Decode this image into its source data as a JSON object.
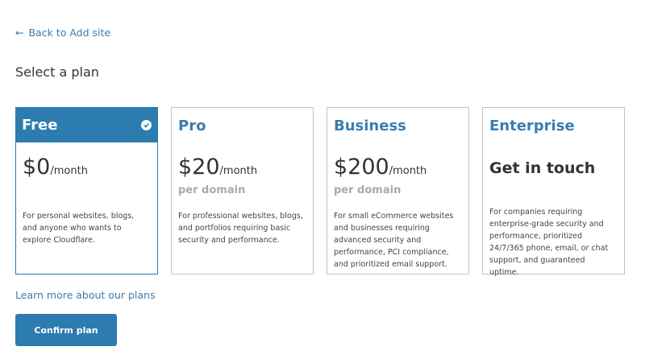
{
  "nav": {
    "back_label": "Back to Add site"
  },
  "page_title": "Select a plan",
  "plans": [
    {
      "name": "Free",
      "price": "$0",
      "period": "/month",
      "sub": "",
      "description": "For personal websites, blogs, and anyone who wants to explore Cloudflare.",
      "selected": true
    },
    {
      "name": "Pro",
      "price": "$20",
      "period": "/month",
      "sub": "per domain",
      "description": "For professional websites, blogs, and portfolios requiring basic security and performance.",
      "selected": false
    },
    {
      "name": "Business",
      "price": "$200",
      "period": "/month",
      "sub": "per domain",
      "description": "For small eCommerce websites and businesses requiring advanced security and performance, PCI compliance, and prioritized email support.",
      "selected": false
    },
    {
      "name": "Enterprise",
      "price": "Get in touch",
      "period": "",
      "sub": "",
      "description": "For companies requiring enterprise-grade security and performance, prioritized 24/7/365 phone, email, or chat support, and guaranteed uptime.",
      "selected": false
    }
  ],
  "learn_more_label": "Learn more about our plans",
  "confirm_label": "Confirm plan",
  "colors": {
    "accent": "#2c7cb0",
    "link": "#3a7db0"
  }
}
